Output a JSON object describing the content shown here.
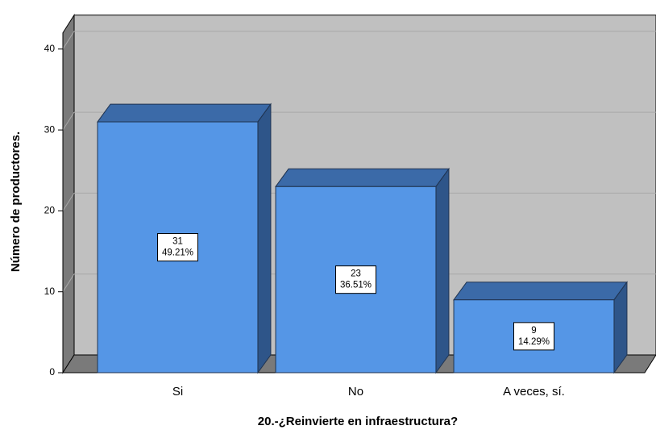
{
  "chart_data": {
    "type": "bar3d",
    "x_label": "20.-¿Reinvierte en infraestructura?",
    "y_label": "Número de productores.",
    "categories": [
      "Si",
      "No",
      "A veces, sí."
    ],
    "values": [
      31,
      23,
      9
    ],
    "percent_labels": [
      "49.21%",
      "36.51%",
      "14.29%"
    ],
    "color": "#5596e6",
    "ylim": [
      0,
      42
    ],
    "yticks": [
      0,
      10,
      20,
      30,
      40
    ],
    "grid": true
  }
}
